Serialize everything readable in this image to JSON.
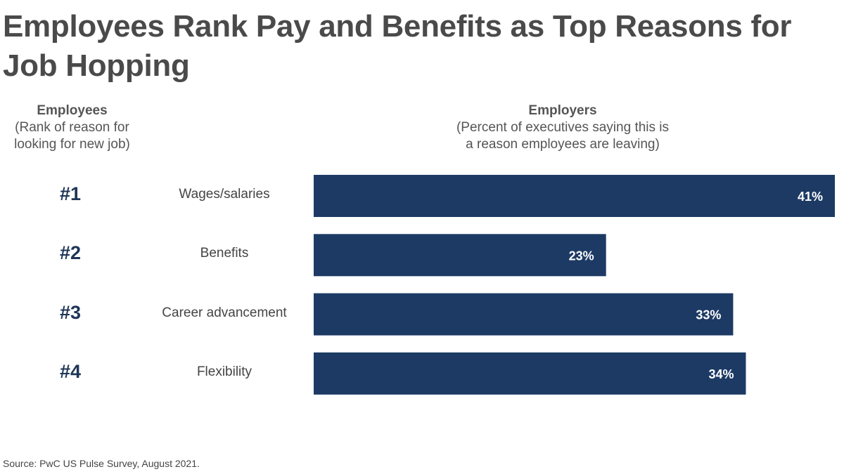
{
  "title": "Employees Rank Pay and Benefits as Top Reasons for Job Hopping",
  "left_header": {
    "title": "Employees",
    "subtitle_line1": "(Rank of reason for",
    "subtitle_line2": "looking for new job)"
  },
  "right_header": {
    "title": "Employers",
    "subtitle_line1": "(Percent of executives saying this is",
    "subtitle_line2": "a reason employees are leaving)"
  },
  "source": "Source: PwC US Pulse Survey, August 2021.",
  "chart_data": {
    "type": "bar",
    "orientation": "horizontal",
    "bar_color": "#1c3a64",
    "label_color": "#ffffff",
    "categories": [
      "Wages/salaries",
      "Benefits",
      "Career advancement",
      "Flexibility"
    ],
    "ranks": [
      "#1",
      "#2",
      "#3",
      "#4"
    ],
    "values": [
      41,
      23,
      33,
      34
    ],
    "data_labels": [
      "41%",
      "23%",
      "33%",
      "34%"
    ],
    "xlim": [
      0,
      41
    ],
    "grid": false
  }
}
